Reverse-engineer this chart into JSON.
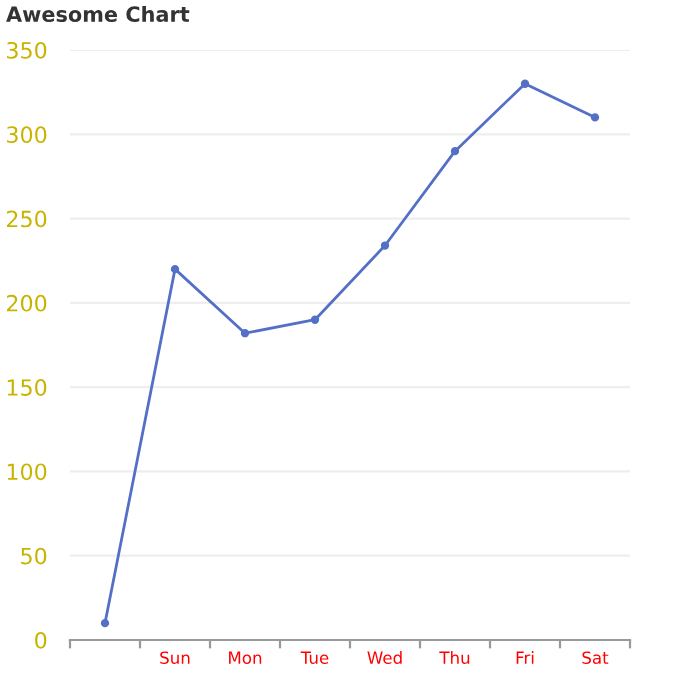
{
  "chart_data": {
    "type": "line",
    "title": "Awesome Chart",
    "categories": [
      null,
      "Sun",
      "Mon",
      "Tue",
      "Wed",
      "Thu",
      "Fri",
      "Sat"
    ],
    "series": [
      {
        "color": "#5470c6",
        "values": [
          10,
          220,
          182,
          190,
          234,
          290,
          330,
          310
        ]
      }
    ],
    "ylim": [
      0,
      350
    ],
    "yticks": [
      0,
      50,
      100,
      150,
      200,
      250,
      300,
      350
    ],
    "grid": "y",
    "marker": "circle",
    "line_style": "solid"
  }
}
